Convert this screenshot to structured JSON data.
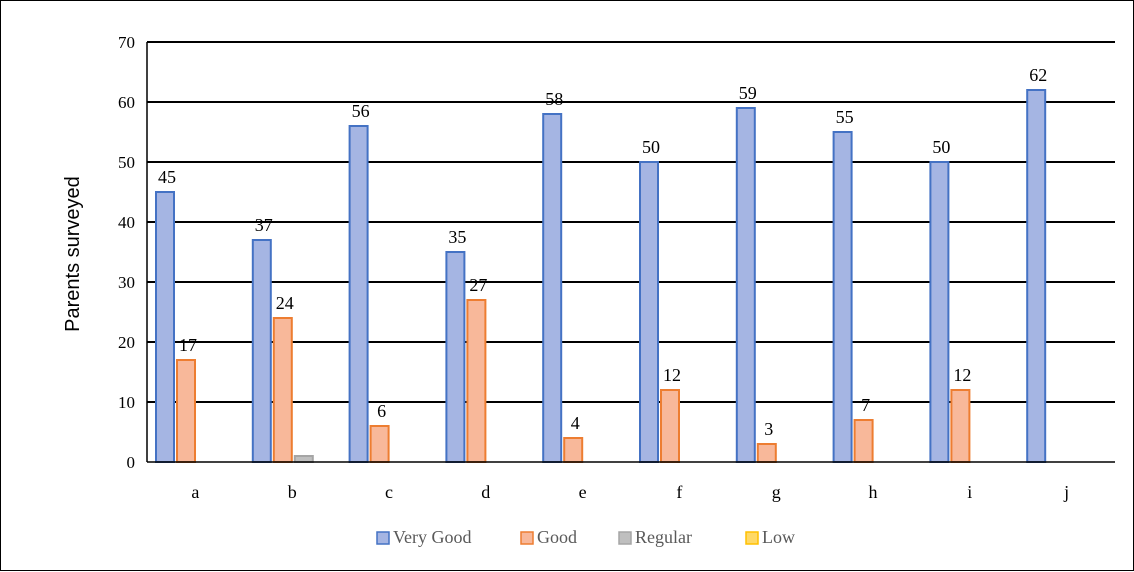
{
  "chart_data": {
    "type": "bar",
    "title": "",
    "xlabel": "",
    "ylabel": "Parents surveyed",
    "ylim": [
      0,
      70
    ],
    "yticks": [
      0,
      10,
      20,
      30,
      40,
      50,
      60,
      70
    ],
    "grid": true,
    "legend_position": "bottom",
    "categories": [
      "a",
      "b",
      "c",
      "d",
      "e",
      "f",
      "g",
      "h",
      "i",
      "j"
    ],
    "series": [
      {
        "name": "Very Good",
        "values": [
          45,
          37,
          56,
          35,
          58,
          50,
          59,
          55,
          50,
          62
        ],
        "labels": [
          "45",
          "37",
          "56",
          "35",
          "58",
          "50",
          "59",
          "55",
          "50",
          "62"
        ],
        "color": "#a5b5e3",
        "edge": "#4472c4"
      },
      {
        "name": "Good",
        "values": [
          17,
          24,
          6,
          27,
          4,
          12,
          3,
          7,
          12,
          0
        ],
        "labels": [
          "17",
          "24",
          "6",
          "27",
          "4",
          "12",
          "3",
          "7",
          "12",
          null
        ],
        "color": "#f8b89a",
        "edge": "#ed7d31"
      },
      {
        "name": "Regular",
        "values": [
          0,
          1,
          0,
          0,
          0,
          0,
          0,
          0,
          0,
          0
        ],
        "labels": [
          null,
          null,
          null,
          null,
          null,
          null,
          null,
          null,
          null,
          null
        ],
        "color": "#bfbfbf",
        "edge": "#a5a5a5"
      },
      {
        "name": "Low",
        "values": [
          0,
          0,
          0,
          0,
          0,
          0,
          0,
          0,
          0,
          0
        ],
        "labels": [
          null,
          null,
          null,
          null,
          null,
          null,
          null,
          null,
          null,
          null
        ],
        "color": "#ffd966",
        "edge": "#ffc000"
      }
    ]
  }
}
